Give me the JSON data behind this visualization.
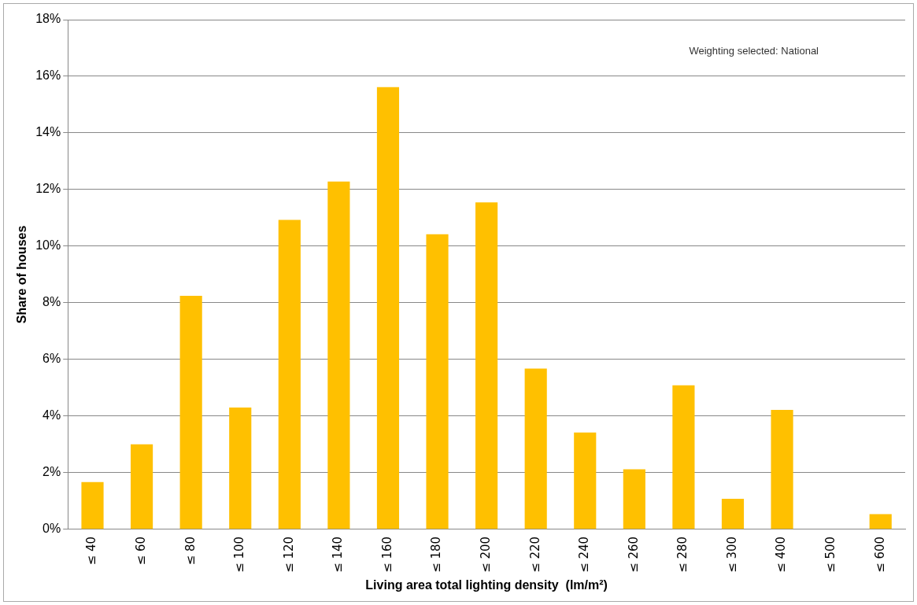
{
  "chart_data": {
    "type": "bar",
    "xlabel": "Living area total lighting density  (lm/m²)",
    "ylabel": "Share of houses",
    "categories": [
      "≤ 40",
      "≤ 60",
      "≤ 80",
      "≤ 100",
      "≤ 120",
      "≤ 140",
      "≤ 160",
      "≤ 180",
      "≤ 200",
      "≤ 220",
      "≤ 240",
      "≤ 260",
      "≤ 280",
      "≤ 300",
      "≤ 400",
      "≤ 500",
      "≤ 600"
    ],
    "values": [
      1.67,
      3.0,
      8.25,
      4.3,
      10.93,
      12.28,
      15.62,
      10.42,
      11.55,
      5.68,
      3.42,
      2.12,
      5.09,
      1.08,
      4.22,
      0,
      0.54
    ],
    "color": "#ffc000",
    "ylim": [
      0,
      18
    ],
    "yticks": [
      {
        "value": 0,
        "label": "0%"
      },
      {
        "value": 2,
        "label": "2%"
      },
      {
        "value": 4,
        "label": "4%"
      },
      {
        "value": 6,
        "label": "6%"
      },
      {
        "value": 8,
        "label": "8%"
      },
      {
        "value": 10,
        "label": "10%"
      },
      {
        "value": 12,
        "label": "12%"
      },
      {
        "value": 14,
        "label": "14%"
      },
      {
        "value": 16,
        "label": "16%"
      },
      {
        "value": 18,
        "label": "18%"
      }
    ],
    "grid": "y",
    "legend": false,
    "annotations": [
      "Weighting selected: National"
    ]
  }
}
